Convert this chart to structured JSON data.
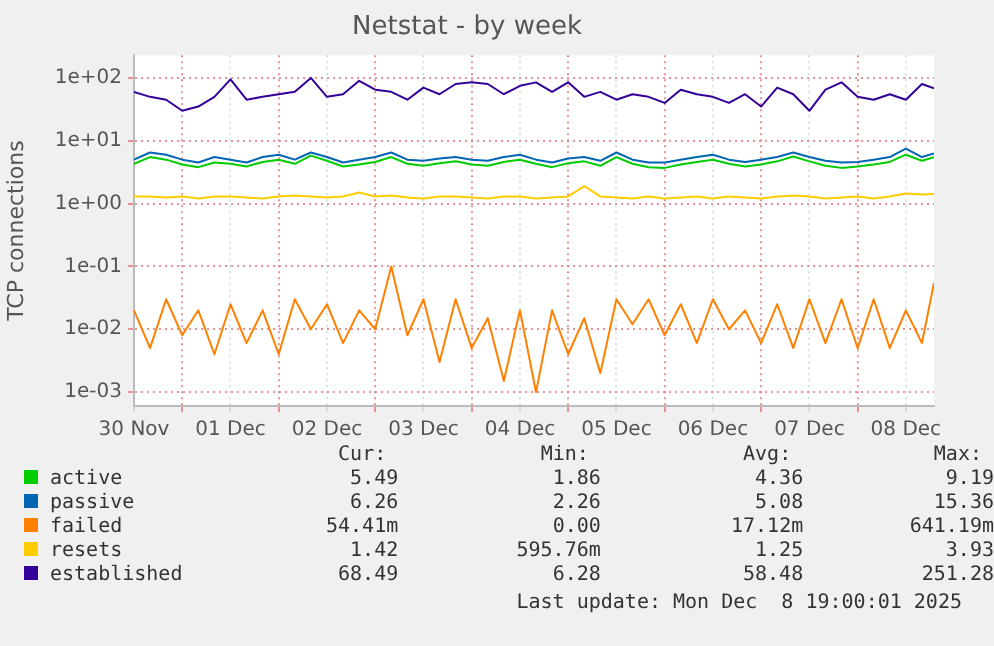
{
  "chart_data": {
    "type": "line",
    "title": "Netstat - by week",
    "ylabel": "TCP connections",
    "log": "y",
    "grid": true,
    "legend": "bottom",
    "marker": "none",
    "line_style": "solid",
    "x": [
      "2025-11-30T12:00",
      "2025-11-30T16:00",
      "2025-11-30T20:00",
      "2025-12-01T00:00",
      "2025-12-01T04:00",
      "2025-12-01T08:00",
      "2025-12-01T12:00",
      "2025-12-01T16:00",
      "2025-12-01T20:00",
      "2025-12-02T00:00",
      "2025-12-02T04:00",
      "2025-12-02T08:00",
      "2025-12-02T12:00",
      "2025-12-02T16:00",
      "2025-12-02T20:00",
      "2025-12-03T00:00",
      "2025-12-03T04:00",
      "2025-12-03T08:00",
      "2025-12-03T12:00",
      "2025-12-03T16:00",
      "2025-12-03T20:00",
      "2025-12-04T00:00",
      "2025-12-04T04:00",
      "2025-12-04T08:00",
      "2025-12-04T12:00",
      "2025-12-04T16:00",
      "2025-12-04T20:00",
      "2025-12-05T00:00",
      "2025-12-05T04:00",
      "2025-12-05T08:00",
      "2025-12-05T12:00",
      "2025-12-05T16:00",
      "2025-12-05T20:00",
      "2025-12-06T00:00",
      "2025-12-06T04:00",
      "2025-12-06T08:00",
      "2025-12-06T12:00",
      "2025-12-06T16:00",
      "2025-12-06T20:00",
      "2025-12-07T00:00",
      "2025-12-07T04:00",
      "2025-12-07T08:00",
      "2025-12-07T12:00",
      "2025-12-07T16:00",
      "2025-12-07T20:00",
      "2025-12-08T00:00",
      "2025-12-08T04:00",
      "2025-12-08T08:00",
      "2025-12-08T12:00",
      "2025-12-08T16:00",
      "2025-12-08T19:00"
    ],
    "xlim": [
      "2025-11-30T12:00",
      "2025-12-08T19:00"
    ],
    "xticks": [
      {
        "value": "2025-11-30T12:00",
        "label": "30 Nov"
      },
      {
        "value": "2025-12-01T00:00",
        "label": null
      },
      {
        "value": "2025-12-01T12:00",
        "label": "01 Dec"
      },
      {
        "value": "2025-12-02T00:00",
        "label": null
      },
      {
        "value": "2025-12-02T12:00",
        "label": "02 Dec"
      },
      {
        "value": "2025-12-03T00:00",
        "label": null
      },
      {
        "value": "2025-12-03T12:00",
        "label": "03 Dec"
      },
      {
        "value": "2025-12-04T00:00",
        "label": null
      },
      {
        "value": "2025-12-04T12:00",
        "label": "04 Dec"
      },
      {
        "value": "2025-12-05T00:00",
        "label": null
      },
      {
        "value": "2025-12-05T12:00",
        "label": "05 Dec"
      },
      {
        "value": "2025-12-06T00:00",
        "label": null
      },
      {
        "value": "2025-12-06T12:00",
        "label": "06 Dec"
      },
      {
        "value": "2025-12-07T00:00",
        "label": null
      },
      {
        "value": "2025-12-07T12:00",
        "label": "07 Dec"
      },
      {
        "value": "2025-12-08T00:00",
        "label": null
      },
      {
        "value": "2025-12-08T12:00",
        "label": "08 Dec"
      }
    ],
    "ylim": [
      0.0006,
      230
    ],
    "yticks": [
      {
        "value": 0.001,
        "label": "1e-03"
      },
      {
        "value": 0.01,
        "label": "1e-02"
      },
      {
        "value": 0.1,
        "label": "1e-01"
      },
      {
        "value": 1,
        "label": "1e+00"
      },
      {
        "value": 10,
        "label": "1e+01"
      },
      {
        "value": 100,
        "label": "1e+02"
      }
    ],
    "series": [
      {
        "name": "active",
        "color": "#00cc00",
        "values": [
          4.3,
          5.5,
          5,
          4.2,
          3.8,
          4.5,
          4.3,
          3.9,
          4.6,
          5,
          4.3,
          5.8,
          4.8,
          3.9,
          4.2,
          4.6,
          5.5,
          4.3,
          4,
          4.4,
          4.7,
          4.2,
          4,
          4.6,
          5,
          4.3,
          3.8,
          4.4,
          4.7,
          4,
          5.5,
          4.3,
          3.8,
          3.7,
          4.2,
          4.6,
          5,
          4.3,
          3.9,
          4.2,
          4.7,
          5.6,
          4.7,
          4,
          3.7,
          3.9,
          4.2,
          4.6,
          6,
          4.8,
          5.49
        ]
      },
      {
        "name": "passive",
        "color": "#0066b3",
        "values": [
          5,
          6.5,
          6,
          5,
          4.5,
          5.5,
          5,
          4.5,
          5.5,
          6,
          5,
          6.5,
          5.5,
          4.5,
          5,
          5.5,
          6.5,
          5,
          4.8,
          5.2,
          5.5,
          5,
          4.8,
          5.5,
          6,
          5,
          4.5,
          5.2,
          5.5,
          4.8,
          6.5,
          5,
          4.5,
          4.5,
          5,
          5.5,
          6,
          5,
          4.6,
          5,
          5.5,
          6.5,
          5.5,
          4.8,
          4.5,
          4.6,
          5,
          5.5,
          7.5,
          5.5,
          6.26
        ]
      },
      {
        "name": "failed",
        "color": "#ff8000",
        "values": [
          0.02,
          0.005,
          0.03,
          0.008,
          0.02,
          0.004,
          0.025,
          0.006,
          0.02,
          0.004,
          0.03,
          0.01,
          0.025,
          0.006,
          0.02,
          0.01,
          0.1,
          0.008,
          0.03,
          0.003,
          0.03,
          0.005,
          0.015,
          0.0015,
          0.02,
          0.001,
          0.02,
          0.004,
          0.015,
          0.002,
          0.03,
          0.012,
          0.03,
          0.008,
          0.025,
          0.006,
          0.03,
          0.01,
          0.02,
          0.006,
          0.025,
          0.005,
          0.03,
          0.006,
          0.03,
          0.005,
          0.03,
          0.005,
          0.02,
          0.006,
          0.05441
        ]
      },
      {
        "name": "resets",
        "color": "#ffcc00",
        "values": [
          1.3,
          1.3,
          1.25,
          1.3,
          1.2,
          1.3,
          1.3,
          1.25,
          1.2,
          1.3,
          1.35,
          1.3,
          1.25,
          1.3,
          1.5,
          1.3,
          1.35,
          1.25,
          1.2,
          1.3,
          1.3,
          1.25,
          1.2,
          1.3,
          1.3,
          1.2,
          1.25,
          1.3,
          1.9,
          1.3,
          1.25,
          1.2,
          1.3,
          1.2,
          1.25,
          1.3,
          1.2,
          1.3,
          1.25,
          1.2,
          1.3,
          1.35,
          1.3,
          1.2,
          1.25,
          1.3,
          1.2,
          1.3,
          1.45,
          1.4,
          1.42
        ]
      },
      {
        "name": "established",
        "color": "#330099",
        "values": [
          60,
          50,
          45,
          30,
          35,
          50,
          95,
          45,
          50,
          55,
          60,
          100,
          50,
          55,
          90,
          65,
          60,
          45,
          70,
          55,
          80,
          85,
          80,
          55,
          75,
          85,
          60,
          85,
          50,
          60,
          45,
          55,
          50,
          40,
          65,
          55,
          50,
          40,
          55,
          35,
          70,
          55,
          30,
          65,
          85,
          50,
          45,
          55,
          45,
          80,
          68.49
        ]
      }
    ],
    "annotations": [
      "Cur:",
      "Min:",
      "Avg:",
      "Max:",
      "5.49",
      "1.86",
      "4.36",
      "9.19",
      "6.26",
      "2.26",
      "5.08",
      "15.36",
      "54.41m",
      "0.00",
      "17.12m",
      "641.19m",
      "1.42",
      "595.76m",
      "1.25",
      "3.93",
      "68.49",
      "6.28",
      "58.48",
      "251.28",
      "Last update: Mon Dec  8 19:00:01 2025"
    ]
  }
}
